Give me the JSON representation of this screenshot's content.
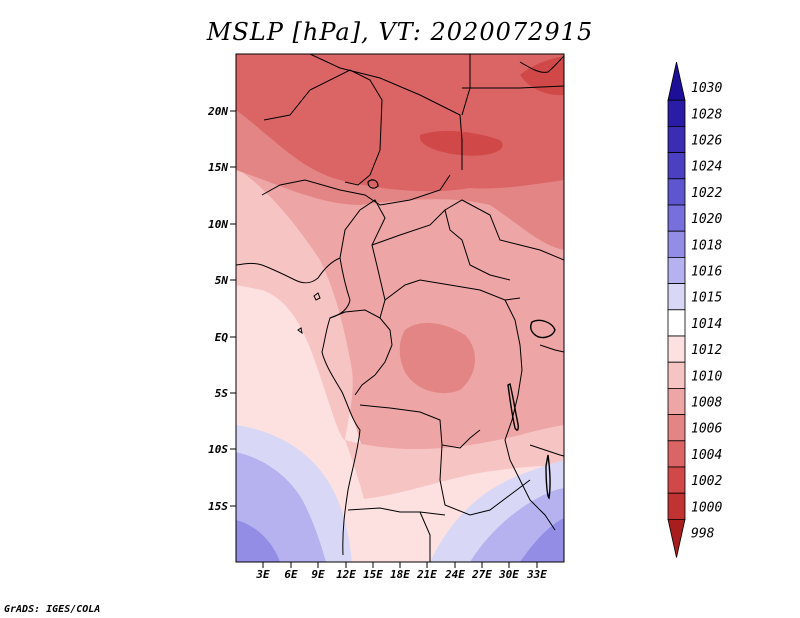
{
  "title": "MSLP [hPa], VT: 2020072915",
  "credit": "GrADS: IGES/COLA",
  "map": {
    "lon_range": [
      0,
      36
    ],
    "lat_range": [
      -20,
      25
    ],
    "lat_ticks": [
      {
        "value": 20,
        "label": "20N"
      },
      {
        "value": 15,
        "label": "15N"
      },
      {
        "value": 10,
        "label": "10N"
      },
      {
        "value": 5,
        "label": "5N"
      },
      {
        "value": 0,
        "label": "EQ"
      },
      {
        "value": -5,
        "label": "5S"
      },
      {
        "value": -10,
        "label": "10S"
      },
      {
        "value": -15,
        "label": "15S"
      }
    ],
    "lon_ticks": [
      {
        "value": 3,
        "label": "3E"
      },
      {
        "value": 6,
        "label": "6E"
      },
      {
        "value": 9,
        "label": "9E"
      },
      {
        "value": 12,
        "label": "12E"
      },
      {
        "value": 15,
        "label": "15E"
      },
      {
        "value": 18,
        "label": "18E"
      },
      {
        "value": 21,
        "label": "21E"
      },
      {
        "value": 24,
        "label": "24E"
      },
      {
        "value": 27,
        "label": "27E"
      },
      {
        "value": 30,
        "label": "30E"
      },
      {
        "value": 33,
        "label": "33E"
      }
    ]
  },
  "colorbar": {
    "levels": [
      {
        "label": "1030",
        "color": "#1e0f99"
      },
      {
        "label": "1028",
        "color": "#2a1ca6"
      },
      {
        "label": "1026",
        "color": "#3a2db4"
      },
      {
        "label": "1024",
        "color": "#4b40c2"
      },
      {
        "label": "1022",
        "color": "#5e56cf"
      },
      {
        "label": "1020",
        "color": "#7770dc"
      },
      {
        "label": "1018",
        "color": "#938de6"
      },
      {
        "label": "1016",
        "color": "#b5b2ef"
      },
      {
        "label": "1015",
        "color": "#d8d8f6"
      },
      {
        "label": "1014",
        "color": "#ffffff"
      },
      {
        "label": "1012",
        "color": "#fde1e1"
      },
      {
        "label": "1010",
        "color": "#f7c4c4"
      },
      {
        "label": "1008",
        "color": "#eda5a5"
      },
      {
        "label": "1006",
        "color": "#e48585"
      },
      {
        "label": "1004",
        "color": "#db6565"
      },
      {
        "label": "1002",
        "color": "#d14848"
      },
      {
        "label": "1000",
        "color": "#c13232"
      },
      {
        "label": "998",
        "color": "#a81e1e"
      }
    ]
  }
}
